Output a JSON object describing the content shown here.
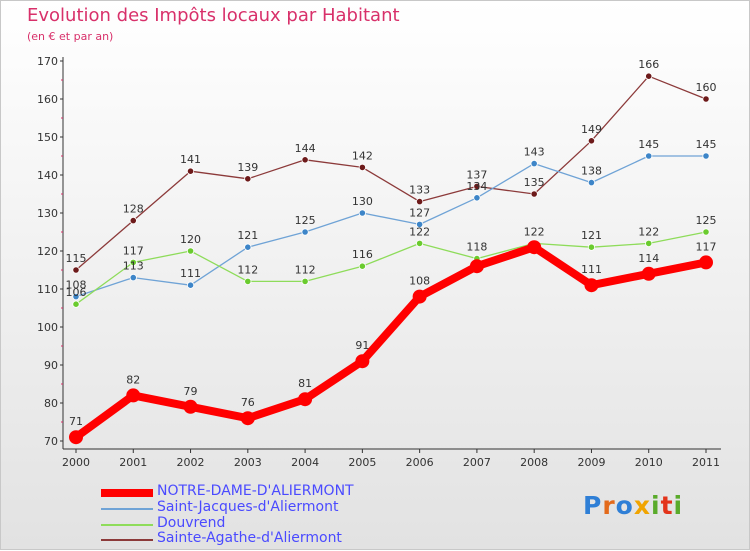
{
  "title": "Evolution des Impôts locaux par Habitant",
  "subtitle": "(en € et par an)",
  "logo": {
    "letters": [
      "P",
      "r",
      "o",
      "x",
      "i",
      "t",
      "i"
    ],
    "colors": [
      "#2f7fd6",
      "#e36a1b",
      "#2f7fd6",
      "#f0a400",
      "#5aab2b",
      "#e3341b",
      "#5aab2b"
    ]
  },
  "chart_data": {
    "type": "line",
    "title": "Evolution des Impôts locaux par Habitant",
    "subtitle": "(en € et par an)",
    "xlabel": "",
    "ylabel": "",
    "ylim": [
      70,
      170
    ],
    "yticks": [
      70,
      80,
      90,
      100,
      110,
      120,
      130,
      140,
      150,
      160,
      170
    ],
    "ytick_labels": [
      "70",
      "80",
      "90",
      "100",
      "110",
      "120",
      "130",
      "140",
      "150",
      "160",
      "170"
    ],
    "categories": [
      "2000",
      "2001",
      "2002",
      "2003",
      "2004",
      "2005",
      "2006",
      "2007",
      "2008",
      "2009",
      "2010",
      "2011"
    ],
    "grid": false,
    "legend_position": "bottom-left",
    "series": [
      {
        "name": "NOTRE-DAME-D'ALIERMONT",
        "color": "#ff0000",
        "legend_color": "#4a4aff",
        "highlight": true,
        "values": [
          71,
          82,
          79,
          76,
          81,
          91,
          108,
          116,
          121,
          111,
          114,
          117
        ],
        "labels": [
          "71",
          "82",
          "79",
          "76",
          "81",
          "91",
          "108",
          "",
          "",
          "111",
          "114",
          "117"
        ]
      },
      {
        "name": "Saint-Jacques-d'Aliermont",
        "color": "#6fa3d6",
        "marker": "#3d85c8",
        "values": [
          108,
          113,
          111,
          121,
          125,
          130,
          127,
          134,
          143,
          138,
          145,
          145
        ],
        "labels": [
          "108",
          "113",
          "111",
          "121",
          "125",
          "130",
          "127",
          "134",
          "143",
          "138",
          "145",
          "145"
        ]
      },
      {
        "name": "Douvrend",
        "color": "#8edc5a",
        "marker": "#6acb2e",
        "values": [
          106,
          117,
          120,
          112,
          112,
          116,
          122,
          118,
          122,
          121,
          122,
          125
        ],
        "labels": [
          "106",
          "117",
          "120",
          "112",
          "112",
          "116",
          "122",
          "118",
          "122",
          "121",
          "122",
          "125"
        ]
      },
      {
        "name": "Sainte-Agathe-d'Aliermont",
        "color": "#8c3a3a",
        "marker": "#6d1a1a",
        "values": [
          115,
          128,
          141,
          139,
          144,
          142,
          133,
          137,
          135,
          149,
          166,
          160
        ],
        "labels": [
          "115",
          "128",
          "141",
          "139",
          "144",
          "142",
          "133",
          "137",
          "135",
          "149",
          "166",
          "160"
        ]
      }
    ]
  }
}
